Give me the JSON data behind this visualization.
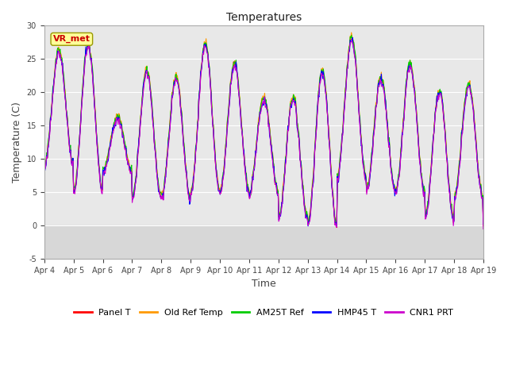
{
  "title": "Temperatures",
  "xlabel": "Time",
  "ylabel": "Temperature (C)",
  "ylim": [
    -5,
    30
  ],
  "yticks": [
    -5,
    0,
    5,
    10,
    15,
    20,
    25,
    30
  ],
  "x_labels": [
    "Apr 4",
    "Apr 5",
    "Apr 6",
    "Apr 7",
    "Apr 8",
    "Apr 9",
    "Apr 10",
    "Apr 11",
    "Apr 12",
    "Apr 13",
    "Apr 14",
    "Apr 15",
    "Apr 16",
    "Apr 17",
    "Apr 18",
    "Apr 19"
  ],
  "series_names": [
    "Panel T",
    "Old Ref Temp",
    "AM25T Ref",
    "HMP45 T",
    "CNR1 PRT"
  ],
  "series_colors": [
    "#ff0000",
    "#ff9900",
    "#00cc00",
    "#0000ff",
    "#cc00cc"
  ],
  "annotation_text": "VR_met",
  "annotation_color": "#cc0000",
  "annotation_bg": "#ffff99",
  "plot_bg": "#e8e8e8",
  "grid_color": "#ffffff",
  "shade_color": "#d0d0d0",
  "n_points": 720,
  "days": 15,
  "day_min": [
    9,
    5,
    8,
    4,
    4,
    5,
    5,
    5,
    1,
    0,
    7,
    5,
    5,
    1,
    4
  ],
  "day_max": [
    26,
    27,
    16,
    23,
    22,
    27,
    24,
    19,
    19,
    23,
    28,
    22,
    24,
    20,
    21
  ],
  "peak_time": [
    0.6,
    0.55,
    0.55,
    0.6,
    0.6,
    0.55,
    0.55,
    0.55,
    0.55,
    0.6,
    0.55,
    0.55,
    0.55,
    0.6,
    0.55
  ]
}
